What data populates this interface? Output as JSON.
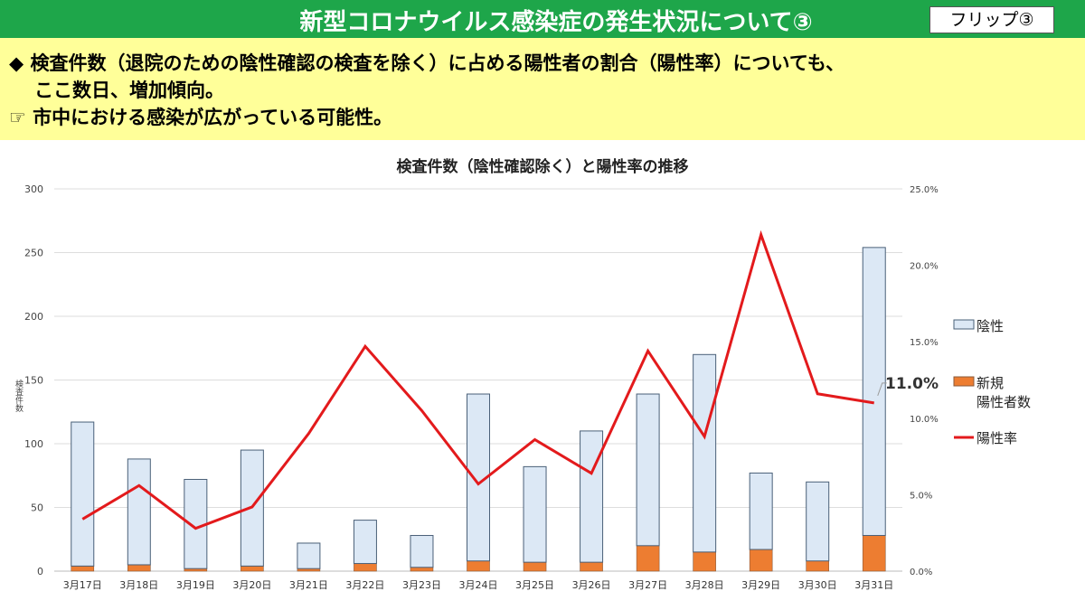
{
  "header": {
    "title": "新型コロナウイルス感染症の発生状況について③",
    "flip_label": "フリップ③"
  },
  "note": {
    "line1": "◆ 検査件数（退院のための陰性確認の検査を除く）に占める陽性者の割合（陽性率）についても、",
    "line2": "ここ数日、増加傾向。",
    "line3": "☞ 市中における感染が広がっている可能性。"
  },
  "colors": {
    "header": "#1ea64a",
    "note_bg": "#ffff99",
    "negative": "#dce8f5",
    "positive": "#ed7d31",
    "rate": "#e31a1c"
  },
  "chart_data": {
    "type": "bar",
    "title": "検査件数（陰性確認除く）と陽性率の推移",
    "ylabel": "検査件数",
    "ylim": [
      0,
      300
    ],
    "yticks": [
      "0",
      "50",
      "100",
      "150",
      "200",
      "250",
      "300"
    ],
    "y2lim": [
      0,
      25
    ],
    "y2ticks": [
      "0.0%",
      "5.0%",
      "10.0%",
      "15.0%",
      "20.0%",
      "25.0%"
    ],
    "categories": [
      "3月17日",
      "3月18日",
      "3月19日",
      "3月20日",
      "3月21日",
      "3月22日",
      "3月23日",
      "3月24日",
      "3月25日",
      "3月26日",
      "3月27日",
      "3月28日",
      "3月29日",
      "3月30日",
      "3月31日"
    ],
    "series": [
      {
        "name": "新規陽性者数",
        "type": "bar",
        "values": [
          4,
          5,
          2,
          4,
          2,
          6,
          3,
          8,
          7,
          7,
          20,
          15,
          17,
          8,
          28
        ]
      },
      {
        "name": "陰性",
        "type": "bar",
        "values": [
          113,
          83,
          70,
          91,
          20,
          34,
          25,
          131,
          75,
          103,
          119,
          155,
          60,
          62,
          226
        ]
      },
      {
        "name": "陽性率",
        "type": "line",
        "axis": "right",
        "values": [
          3.4,
          5.6,
          2.8,
          4.2,
          9.0,
          14.7,
          10.5,
          5.7,
          8.6,
          6.4,
          14.4,
          8.8,
          22.0,
          11.6,
          11.0
        ]
      }
    ],
    "legend": {
      "negative": "陰性",
      "positive_line1": "新規",
      "positive_line2": "陽性者数",
      "rate": "陽性率"
    },
    "annotation": "11.0%",
    "legend_position": "right"
  }
}
